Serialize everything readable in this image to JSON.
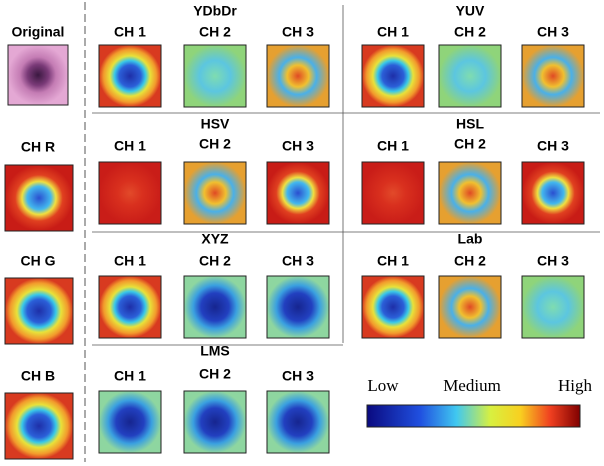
{
  "original": {
    "label": "Original"
  },
  "rows": [
    {
      "label": "CH R"
    },
    {
      "label": "CH G"
    },
    {
      "label": "CH B"
    }
  ],
  "groups": [
    {
      "title": "YDbDr",
      "channels": [
        "CH 1",
        "CH 2",
        "CH 3"
      ]
    },
    {
      "title": "YUV",
      "channels": [
        "CH 1",
        "CH 2",
        "CH 3"
      ]
    },
    {
      "title": "HSV",
      "channels": [
        "CH 1",
        "CH 2",
        "CH 3"
      ]
    },
    {
      "title": "HSL",
      "channels": [
        "CH 1",
        "CH 2",
        "CH 3"
      ]
    },
    {
      "title": "XYZ",
      "channels": [
        "CH 1",
        "CH 2",
        "CH 3"
      ]
    },
    {
      "title": "Lab",
      "channels": [
        "CH 1",
        "CH 2",
        "CH 3"
      ]
    },
    {
      "title": "LMS",
      "channels": [
        "CH 1",
        "CH 2",
        "CH 3"
      ]
    }
  ],
  "colorbar": {
    "low": "Low",
    "medium": "Medium",
    "high": "High"
  }
}
